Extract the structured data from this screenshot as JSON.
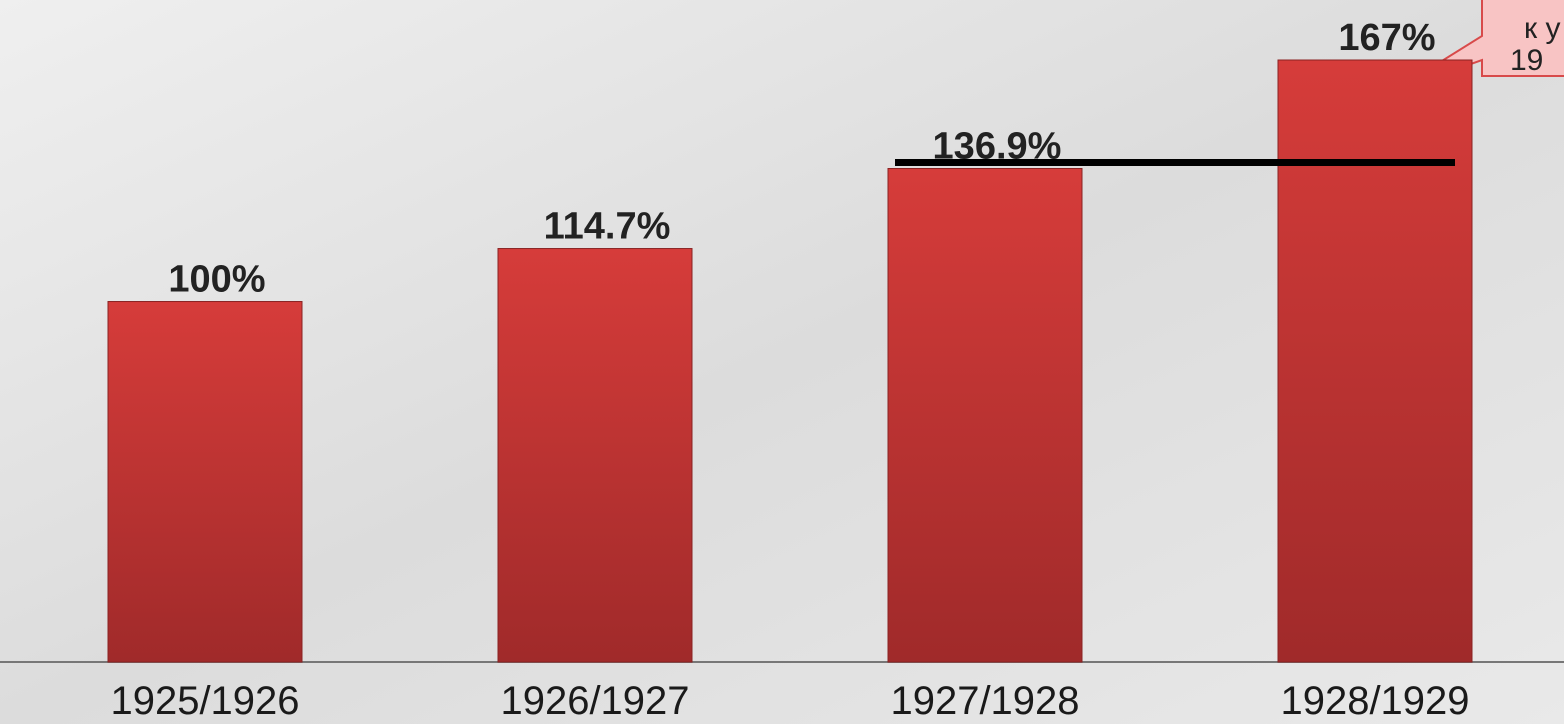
{
  "chart_data": {
    "type": "bar",
    "categories": [
      "1925/1926",
      "1926/1927",
      "1927/1928",
      "1928/1929"
    ],
    "values": [
      100,
      114.7,
      136.9,
      167
    ],
    "value_labels": [
      "100%",
      "114.7%",
      "136.9%",
      "167%"
    ],
    "color": "#c83434",
    "annotation": [
      "к у",
      "19"
    ]
  }
}
